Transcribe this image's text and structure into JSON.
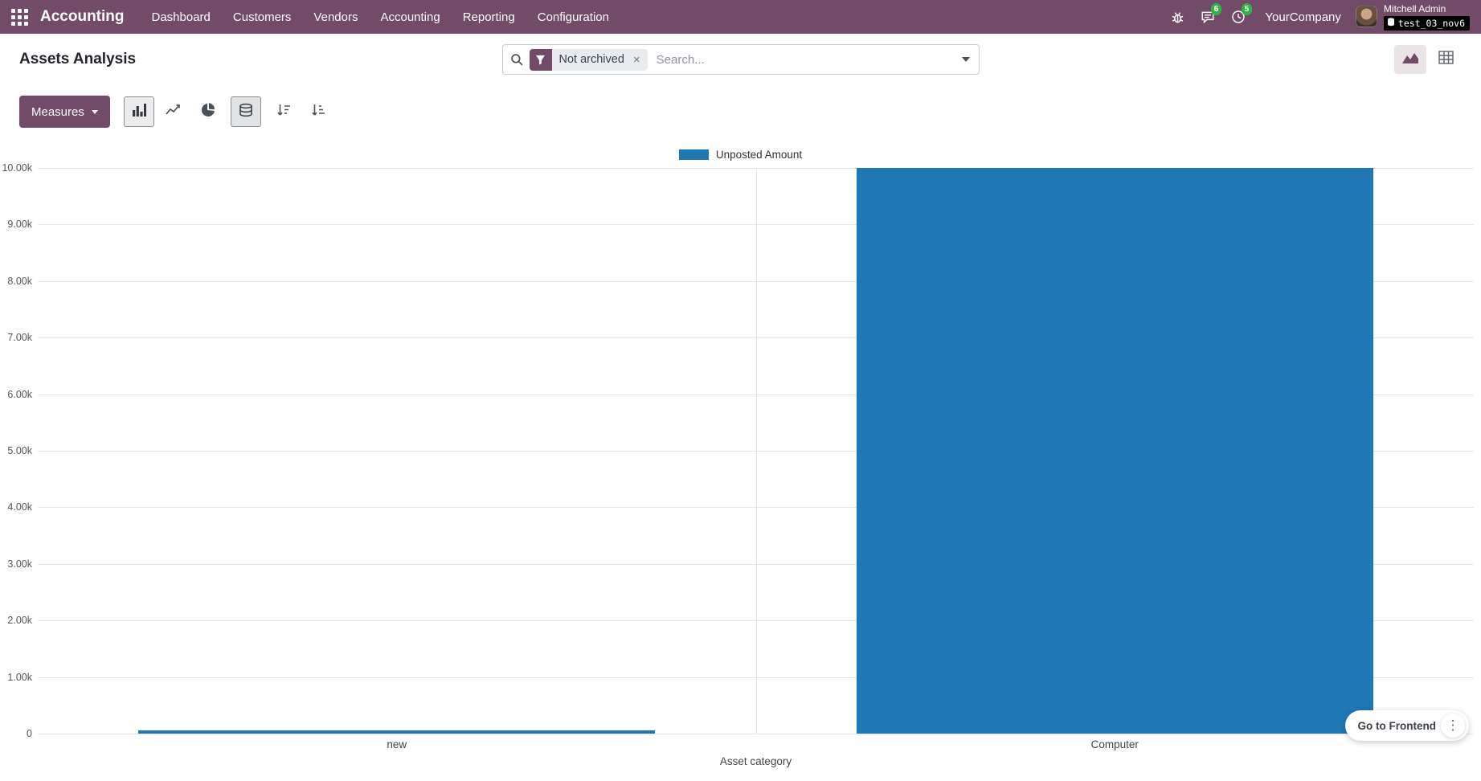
{
  "colors": {
    "topbar_bg": "#714B67",
    "accent": "#714B67",
    "badge_green": "#2fb344",
    "grid": "#e6e6e6"
  },
  "topbar": {
    "app_name": "Accounting",
    "menu": [
      "Dashboard",
      "Customers",
      "Vendors",
      "Accounting",
      "Reporting",
      "Configuration"
    ],
    "messages_count": "6",
    "activities_count": "5",
    "company": "YourCompany",
    "user_name": "Mitchell Admin",
    "database": "test_03_nov6"
  },
  "control_panel": {
    "title": "Assets Analysis",
    "search": {
      "facet_label": "Not archived",
      "facet_remove": "×",
      "placeholder": "Search..."
    }
  },
  "toolbar": {
    "measures_label": "Measures"
  },
  "chart_data": {
    "type": "bar",
    "title": "",
    "xlabel": "Asset category",
    "ylabel": "",
    "categories": [
      "new",
      "Computer"
    ],
    "series": [
      {
        "name": "Unposted Amount",
        "color": "#1f77b4",
        "values": [
          50,
          10000
        ]
      }
    ],
    "ylim": [
      0,
      10000
    ],
    "ytick_step": 1000,
    "ytick_labels": [
      "0",
      "1.00k",
      "2.00k",
      "3.00k",
      "4.00k",
      "5.00k",
      "6.00k",
      "7.00k",
      "8.00k",
      "9.00k",
      "10.00k"
    ],
    "legend_position": "top",
    "grid": true,
    "stacked": true
  },
  "floating": {
    "frontend_label": "Go to Frontend",
    "menu_icon": "⋮"
  }
}
